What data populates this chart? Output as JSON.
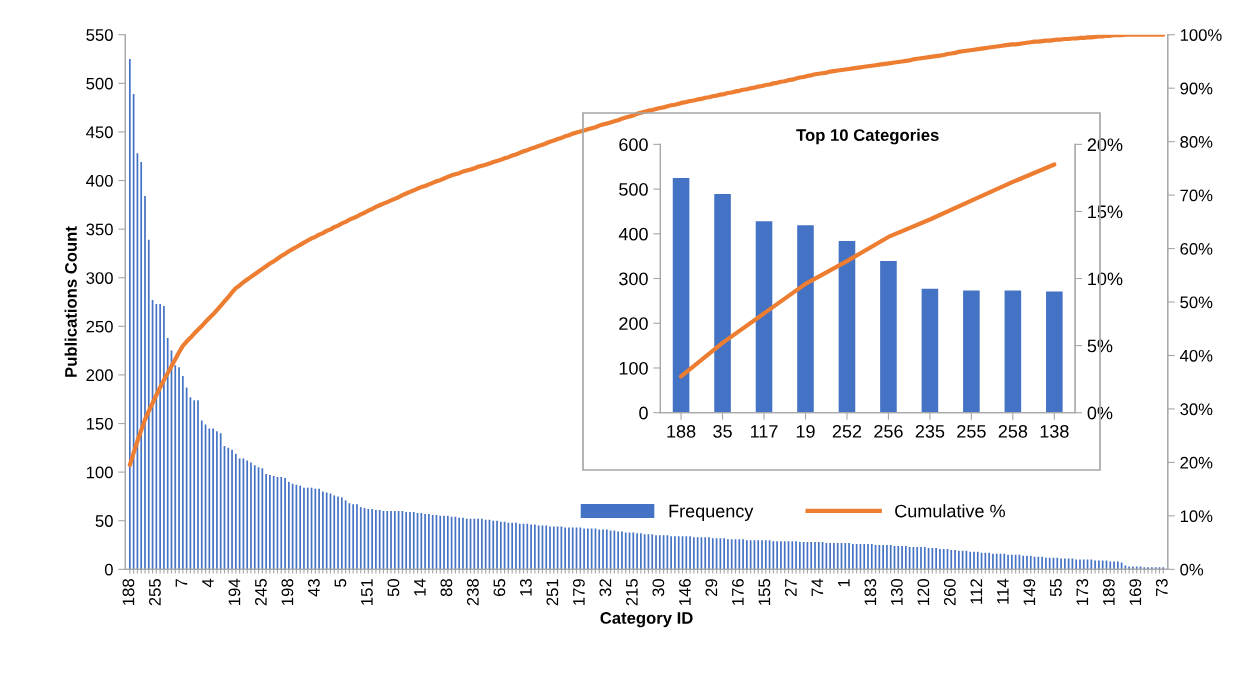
{
  "chart_data": [
    {
      "type": "bar",
      "xlabel": "Category ID",
      "ylabel": "Publications Count",
      "categories": [
        "188",
        null,
        null,
        null,
        null,
        null,
        null,
        "255",
        null,
        null,
        null,
        null,
        null,
        null,
        "7",
        null,
        null,
        null,
        null,
        null,
        null,
        "4",
        null,
        null,
        null,
        null,
        null,
        null,
        "194",
        null,
        null,
        null,
        null,
        null,
        null,
        "245",
        null,
        null,
        null,
        null,
        null,
        null,
        "198",
        null,
        null,
        null,
        null,
        null,
        null,
        "43",
        null,
        null,
        null,
        null,
        null,
        null,
        "5",
        null,
        null,
        null,
        null,
        null,
        null,
        "151",
        null,
        null,
        null,
        null,
        null,
        null,
        "50",
        null,
        null,
        null,
        null,
        null,
        null,
        "14",
        null,
        null,
        null,
        null,
        null,
        null,
        "88",
        null,
        null,
        null,
        null,
        null,
        null,
        "238",
        null,
        null,
        null,
        null,
        null,
        null,
        "65",
        null,
        null,
        null,
        null,
        null,
        null,
        "13",
        null,
        null,
        null,
        null,
        null,
        null,
        "251",
        null,
        null,
        null,
        null,
        null,
        null,
        "179",
        null,
        null,
        null,
        null,
        null,
        null,
        "32",
        null,
        null,
        null,
        null,
        null,
        null,
        "215",
        null,
        null,
        null,
        null,
        null,
        null,
        "30",
        null,
        null,
        null,
        null,
        null,
        null,
        "146",
        null,
        null,
        null,
        null,
        null,
        null,
        "29",
        null,
        null,
        null,
        null,
        null,
        null,
        "176",
        null,
        null,
        null,
        null,
        null,
        null,
        "155",
        null,
        null,
        null,
        null,
        null,
        null,
        "27",
        null,
        null,
        null,
        null,
        null,
        null,
        "74",
        null,
        null,
        null,
        null,
        null,
        null,
        "1",
        null,
        null,
        null,
        null,
        null,
        null,
        "183",
        null,
        null,
        null,
        null,
        null,
        null,
        "130",
        null,
        null,
        null,
        null,
        null,
        null,
        "120",
        null,
        null,
        null,
        null,
        null,
        null,
        "260",
        null,
        null,
        null,
        null,
        null,
        null,
        "112",
        null,
        null,
        null,
        null,
        null,
        null,
        "114",
        null,
        null,
        null,
        null,
        null,
        null,
        "149",
        null,
        null,
        null,
        null,
        null,
        null,
        "55",
        null,
        null,
        null,
        null,
        null,
        null,
        "173",
        null,
        null,
        null,
        null,
        null,
        null,
        "189",
        null,
        null,
        null,
        null,
        null,
        null,
        "169",
        null,
        null,
        null,
        null,
        null,
        null,
        "73"
      ],
      "series": [
        {
          "name": "Frequency",
          "color": "#4472c4",
          "values": [
            525,
            489,
            428,
            419,
            384,
            339,
            277,
            273,
            273,
            271,
            238,
            225,
            210,
            208,
            199,
            187,
            177,
            174,
            174,
            153,
            149,
            145,
            145,
            142,
            140,
            127,
            125,
            123,
            119,
            114,
            114,
            112,
            110,
            107,
            105,
            104,
            98,
            97,
            96,
            95,
            95,
            94,
            90,
            88,
            87,
            86,
            84,
            84,
            84,
            83,
            83,
            80,
            79,
            78,
            76,
            75,
            74,
            71,
            68,
            67,
            67,
            64,
            63,
            62,
            62,
            61,
            61,
            60,
            60,
            60,
            60,
            60,
            60,
            59,
            59,
            59,
            58,
            58,
            57,
            57,
            56,
            56,
            55,
            55,
            55,
            54,
            54,
            53,
            53,
            52,
            52,
            52,
            52,
            52,
            51,
            51,
            50,
            50,
            49,
            49,
            48,
            48,
            48,
            47,
            47,
            47,
            46,
            46,
            45,
            45,
            45,
            44,
            44,
            44,
            44,
            43,
            43,
            43,
            43,
            43,
            42,
            42,
            42,
            42,
            41,
            41,
            41,
            40,
            40,
            39,
            39,
            38,
            38,
            38,
            37,
            37,
            36,
            36,
            36,
            35,
            35,
            35,
            35,
            34,
            34,
            34,
            34,
            34,
            34,
            33,
            33,
            33,
            33,
            33,
            32,
            32,
            32,
            32,
            31,
            31,
            31,
            31,
            31,
            30,
            30,
            30,
            30,
            30,
            30,
            30,
            29,
            29,
            29,
            29,
            29,
            29,
            29,
            28,
            28,
            28,
            28,
            28,
            28,
            28,
            27,
            27,
            27,
            27,
            27,
            27,
            27,
            26,
            26,
            26,
            26,
            26,
            26,
            25,
            25,
            25,
            25,
            25,
            24,
            24,
            24,
            24,
            23,
            23,
            23,
            23,
            23,
            22,
            22,
            22,
            21,
            21,
            21,
            20,
            20,
            19,
            19,
            19,
            18,
            18,
            18,
            17,
            17,
            17,
            16,
            16,
            16,
            16,
            15,
            15,
            15,
            15,
            14,
            14,
            14,
            13,
            13,
            13,
            12,
            12,
            12,
            12,
            11,
            11,
            11,
            11,
            10,
            10,
            10,
            10,
            10,
            9,
            9,
            9,
            9,
            8,
            8,
            8,
            7,
            4,
            3,
            3,
            3,
            3,
            2,
            2,
            2,
            2,
            2,
            2
          ]
        },
        {
          "name": "Cumulative %",
          "type": "line",
          "axis": "y2",
          "color": "#ed7d31",
          "values": [
            19.5,
            21.8,
            24,
            26,
            28,
            29.6,
            31.1,
            32.6,
            34,
            35.4,
            36.7,
            38,
            39.3,
            40.6,
            41.8,
            42.6,
            43.3,
            44.1,
            44.8,
            45.5,
            46.3,
            47,
            47.7,
            48.5,
            49.3,
            50.1,
            50.9,
            51.8,
            52.6,
            53.1,
            53.7,
            54.2,
            54.7,
            55.2,
            55.7,
            56.2,
            56.7,
            57.2,
            57.6,
            58.1,
            58.6,
            59,
            59.5,
            59.9,
            60.3,
            60.7,
            61.1,
            61.5,
            61.9,
            62.2,
            62.6,
            62.9,
            63.3,
            63.6,
            64,
            64.3,
            64.7,
            65,
            65.4,
            65.7,
            66,
            66.4,
            66.7,
            67.1,
            67.4,
            67.8,
            68.1,
            68.4,
            68.7,
            69,
            69.3,
            69.6,
            70,
            70.3,
            70.6,
            70.9,
            71.2,
            71.5,
            71.7,
            72,
            72.3,
            72.6,
            72.8,
            73.1,
            73.4,
            73.7,
            73.9,
            74.1,
            74.4,
            74.6,
            74.8,
            75,
            75.3,
            75.5,
            75.7,
            75.9,
            76.2,
            76.4,
            76.6,
            76.9,
            77.1,
            77.4,
            77.6,
            77.9,
            78.2,
            78.4,
            78.7,
            78.9,
            79.2,
            79.4,
            79.7,
            80,
            80.2,
            80.5,
            80.7,
            81,
            81.2,
            81.5,
            81.7,
            81.9,
            82.1,
            82.3,
            82.5,
            82.7,
            83,
            83.2,
            83.4,
            83.6,
            83.8,
            84,
            84.3,
            84.5,
            84.7,
            84.9,
            85.2,
            85.4,
            85.6,
            85.8,
            85.9,
            86.1,
            86.3,
            86.4,
            86.6,
            86.8,
            86.9,
            87.1,
            87.3,
            87.4,
            87.6,
            87.7,
            87.9,
            88,
            88.2,
            88.3,
            88.5,
            88.6,
            88.8,
            88.9,
            89.1,
            89.2,
            89.4,
            89.5,
            89.7,
            89.8,
            90,
            90.1,
            90.3,
            90.4,
            90.6,
            90.7,
            90.9,
            91,
            91.2,
            91.3,
            91.5,
            91.6,
            91.8,
            92,
            92.1,
            92.3,
            92.4,
            92.6,
            92.7,
            92.8,
            92.9,
            93.1,
            93.2,
            93.3,
            93.4,
            93.5,
            93.6,
            93.7,
            93.8,
            93.9,
            94,
            94.1,
            94.2,
            94.3,
            94.4,
            94.5,
            94.6,
            94.7,
            94.8,
            94.9,
            95,
            95.1,
            95.2,
            95.4,
            95.5,
            95.6,
            95.7,
            95.8,
            95.9,
            96,
            96.1,
            96.2,
            96.4,
            96.5,
            96.6,
            96.8,
            96.9,
            97,
            97.1,
            97.2,
            97.3,
            97.4,
            97.5,
            97.6,
            97.7,
            97.8,
            97.9,
            98,
            98.1,
            98.2,
            98.2,
            98.3,
            98.4,
            98.5,
            98.6,
            98.7,
            98.7,
            98.8,
            98.9,
            98.9,
            99,
            99.1,
            99.1,
            99.2,
            99.2,
            99.3,
            99.3,
            99.4,
            99.4,
            99.5,
            99.5,
            99.6,
            99.7,
            99.7,
            99.8,
            99.8,
            99.9,
            99.9,
            99.9,
            100,
            100,
            100,
            100,
            100,
            100,
            100,
            100,
            100,
            100,
            100
          ]
        }
      ],
      "ylim": [
        0,
        550
      ],
      "yticks": [
        0,
        50,
        100,
        150,
        200,
        250,
        300,
        350,
        400,
        450,
        500,
        550
      ],
      "y2lim": [
        0,
        100
      ],
      "y2ticks": [
        {
          "value": 0,
          "label": "0%"
        },
        {
          "value": 10,
          "label": "10%"
        },
        {
          "value": 20,
          "label": "20%"
        },
        {
          "value": 30,
          "label": "30%"
        },
        {
          "value": 40,
          "label": "40%"
        },
        {
          "value": 50,
          "label": "50%"
        },
        {
          "value": 60,
          "label": "60%"
        },
        {
          "value": 70,
          "label": "70%"
        },
        {
          "value": 80,
          "label": "80%"
        },
        {
          "value": 90,
          "label": "90%"
        },
        {
          "value": 100,
          "label": "100%"
        }
      ],
      "legend": "bottom right"
    },
    {
      "type": "bar",
      "title": "Top 10 Categories",
      "categories": [
        "188",
        "35",
        "117",
        "19",
        "252",
        "256",
        "235",
        "255",
        "258",
        "138"
      ],
      "series": [
        {
          "color": "#4472c4",
          "values": [
            525,
            489,
            428,
            419,
            384,
            339,
            277,
            273,
            273,
            271
          ]
        },
        {
          "type": "line",
          "axis": "y2",
          "color": "#ed7d31",
          "values": [
            2.7,
            5.2,
            7.4,
            9.6,
            11.3,
            13.1,
            14.4,
            15.8,
            17.2,
            18.5
          ]
        }
      ],
      "ylim": [
        0,
        600
      ],
      "yticks": [
        0,
        100,
        200,
        300,
        400,
        500,
        600
      ],
      "y2lim": [
        0,
        20
      ],
      "y2ticks": [
        {
          "value": 0,
          "label": "0%"
        },
        {
          "value": 5,
          "label": "5%"
        },
        {
          "value": 10,
          "label": "10%"
        },
        {
          "value": 15,
          "label": "15%"
        },
        {
          "value": 20,
          "label": "20%"
        }
      ]
    }
  ]
}
